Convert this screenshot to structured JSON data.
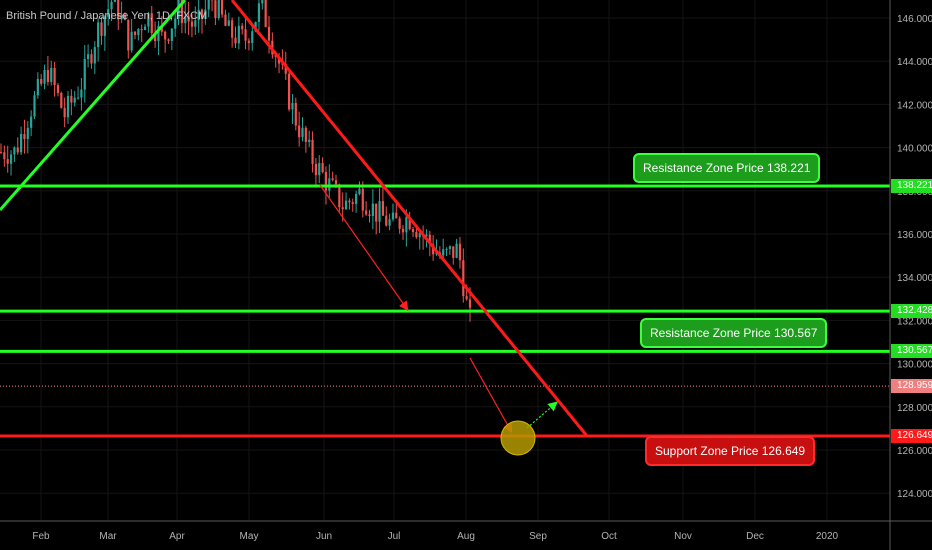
{
  "title": "British Pound / Japanese Yen, 1D, FXCM",
  "chart_data": {
    "type": "candlestick",
    "instrument": "British Pound / Japanese Yen",
    "timeframe": "1D",
    "source": "FXCM",
    "x_ticks": [
      "Feb",
      "Mar",
      "Apr",
      "May",
      "Jun",
      "Jul",
      "Aug",
      "Sep",
      "Oct",
      "Nov",
      "Dec",
      "2020"
    ],
    "y_ticks": [
      "146.000",
      "144.000",
      "142.000",
      "140.000",
      "138.000",
      "136.000",
      "134.000",
      "132.000",
      "130.000",
      "128.000",
      "126.000",
      "124.000"
    ],
    "ylim": [
      122.4,
      146.8
    ],
    "price_tags": [
      {
        "value": 138.221,
        "label": "138.221",
        "color": "#22dd22"
      },
      {
        "value": 132.428,
        "label": "132.428",
        "color": "#22dd22"
      },
      {
        "value": 130.567,
        "label": "130.567",
        "color": "#22dd22"
      },
      {
        "value": 128.959,
        "label": "128.959",
        "color": "#f07f7f"
      },
      {
        "value": 126.649,
        "label": "126.649",
        "color": "#ff1a1a"
      }
    ],
    "horizontal_lines": [
      {
        "value": 138.221,
        "color": "#22ff22"
      },
      {
        "value": 132.428,
        "color": "#22ff22"
      },
      {
        "value": 130.567,
        "color": "#22ff22"
      },
      {
        "value": 126.649,
        "color": "#ff1a1a"
      },
      {
        "value": 128.959,
        "color": "#f07f7f",
        "style": "dotted"
      }
    ],
    "annotations": [
      {
        "text": "Resistance Zone Price 138.221",
        "color": "green"
      },
      {
        "text": "Resistance Zone Price 130.567",
        "color": "green"
      },
      {
        "text": "Support Zone Price 126.649",
        "color": "red"
      }
    ],
    "price_path": [
      [
        "2019-01-21",
        139.8
      ],
      [
        "2019-01-28",
        141.9
      ],
      [
        "2019-02-04",
        143.6
      ],
      [
        "2019-02-11",
        141.5
      ],
      [
        "2019-02-18",
        142.9
      ],
      [
        "2019-02-25",
        145.4
      ],
      [
        "2019-03-04",
        147.0
      ],
      [
        "2019-03-11",
        144.8
      ],
      [
        "2019-03-18",
        146.2
      ],
      [
        "2019-03-25",
        145.0
      ],
      [
        "2019-04-01",
        146.4
      ],
      [
        "2019-04-08",
        145.5
      ],
      [
        "2019-04-15",
        146.9
      ],
      [
        "2019-04-22",
        145.3
      ],
      [
        "2019-04-29",
        145.0
      ],
      [
        "2019-05-06",
        146.6
      ],
      [
        "2019-05-13",
        144.1
      ],
      [
        "2019-05-20",
        141.5
      ],
      [
        "2019-05-27",
        139.6
      ],
      [
        "2019-06-03",
        138.4
      ],
      [
        "2019-06-10",
        137.3
      ],
      [
        "2019-06-17",
        137.9
      ],
      [
        "2019-06-24",
        137.0
      ],
      [
        "2019-07-01",
        136.4
      ],
      [
        "2019-07-08",
        136.8
      ],
      [
        "2019-07-15",
        135.8
      ],
      [
        "2019-07-22",
        134.9
      ],
      [
        "2019-07-29",
        135.3
      ],
      [
        "2019-08-02",
        132.4
      ],
      [
        "2019-08-07",
        130.3
      ],
      [
        "2019-08-12",
        128.4
      ]
    ]
  }
}
